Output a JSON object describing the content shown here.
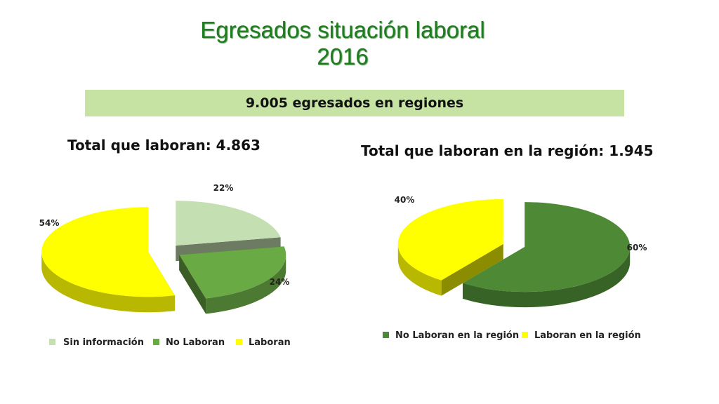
{
  "slide": {
    "title_line1": "Egresados situación laboral",
    "title_line2": "2016",
    "banner": "9.005 egresados en regiones",
    "title_color": "#1e7d1e",
    "banner_color": "#c6e3a4"
  },
  "chart_data": [
    {
      "type": "pie",
      "title": "Total que laboran: 4.863",
      "legend_position": "bottom",
      "exploded": true,
      "slices": [
        {
          "name": "Sin información",
          "value": 22,
          "label": "22%",
          "color": "#c4dfb1"
        },
        {
          "name": "No Laboran",
          "value": 24,
          "label": "24%",
          "color": "#6aaa45"
        },
        {
          "name": "Laboran",
          "value": 54,
          "label": "54%",
          "color": "#ffff00"
        }
      ]
    },
    {
      "type": "pie",
      "title": "Total que laboran en la región: 1.945",
      "legend_position": "bottom",
      "exploded": true,
      "slices": [
        {
          "name": "No Laboran en la región",
          "value": 60,
          "label": "60%",
          "color": "#4e8a35"
        },
        {
          "name": "Laboran en la región",
          "value": 40,
          "label": "40%",
          "color": "#ffff00"
        }
      ]
    }
  ]
}
